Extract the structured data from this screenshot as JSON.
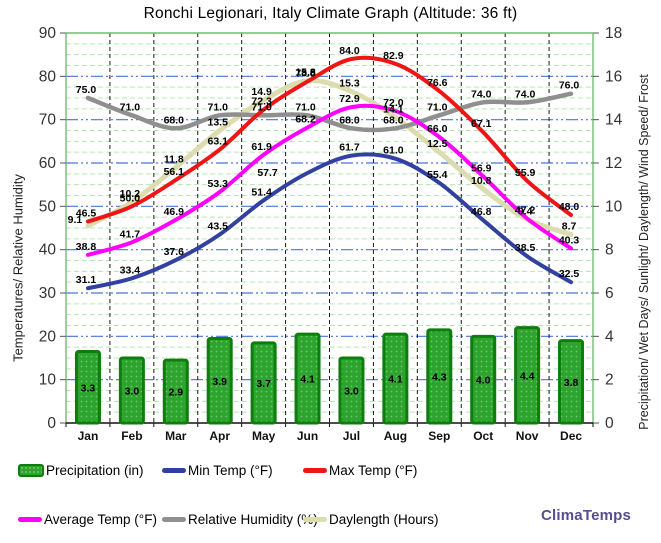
{
  "title": "Ronchi Legionari, Italy Climate Graph (Altitude: 36 ft)",
  "watermark": "ClimaTemps",
  "axes": {
    "left_title": "Temperatures/ Relative Humidity",
    "right_title": "Precipitation/ Wet Days/ Sunlight/ Daylength/ Wind Speed/ Frost",
    "left_ticks": [
      0,
      10,
      20,
      30,
      40,
      50,
      60,
      70,
      80,
      90
    ],
    "right_ticks": [
      0,
      2,
      4,
      6,
      8,
      10,
      12,
      14,
      16,
      18
    ],
    "left_range": [
      0,
      90
    ],
    "right_range": [
      0,
      18
    ]
  },
  "chart_data": {
    "type": "bar+line",
    "categories": [
      "Jan",
      "Feb",
      "Mar",
      "Apr",
      "May",
      "Jun",
      "Jul",
      "Aug",
      "Sep",
      "Oct",
      "Nov",
      "Dec"
    ],
    "grid": {
      "major_color": "#4a74d8",
      "minor_color": "#b5e8b5",
      "vertical_color": "#1a1a1a",
      "border_color": "#6fbf6f"
    },
    "series": [
      {
        "id": "precipitation",
        "name": "Precipitation (in)",
        "type": "bar",
        "axis": "right",
        "color": "#2da42d",
        "border_color": "#0d7d0d",
        "values": [
          3.3,
          3.0,
          2.9,
          3.9,
          3.7,
          4.1,
          3.0,
          4.1,
          4.3,
          4.0,
          4.4,
          3.8
        ]
      },
      {
        "id": "min-temp",
        "name": "Min Temp (°F)",
        "type": "line",
        "axis": "left",
        "color": "#3240a0",
        "values": [
          31.1,
          33.4,
          37.6,
          43.5,
          51.4,
          57.7,
          61.7,
          61.0,
          55.4,
          46.8,
          38.5,
          32.5
        ]
      },
      {
        "id": "max-temp",
        "name": "Max Temp (°F)",
        "type": "line",
        "axis": "left",
        "color": "#ed1515",
        "values": [
          46.5,
          50.0,
          56.1,
          63.1,
          72.3,
          78.8,
          84.0,
          82.9,
          76.6,
          67.1,
          55.9,
          48.0
        ]
      },
      {
        "id": "average-temp",
        "name": "Average Temp (°F)",
        "type": "line",
        "axis": "left",
        "color": "#ff00ff",
        "values": [
          38.8,
          41.7,
          46.9,
          53.3,
          61.9,
          68.2,
          72.9,
          72.0,
          66.0,
          56.9,
          47.2,
          40.3
        ]
      },
      {
        "id": "relative-humidity",
        "name": "Relative Humidity (%)",
        "type": "line",
        "axis": "left",
        "color": "#8f8f8f",
        "values": [
          75.0,
          71.0,
          68.0,
          71.0,
          71.0,
          71.0,
          68.0,
          68.0,
          71.0,
          74.0,
          74.0,
          76.0
        ]
      },
      {
        "id": "daylength",
        "name": "Daylength (Hours)",
        "type": "line",
        "axis": "right",
        "color": "#dcdcae",
        "values": [
          9.1,
          10.2,
          11.8,
          13.5,
          14.9,
          15.8,
          15.3,
          14.1,
          12.5,
          10.8,
          9.4,
          8.7
        ]
      }
    ],
    "xlabel": "",
    "ylabel_left": "Temperatures/ Relative Humidity",
    "ylabel_right": "Precipitation/ Wet Days/ Sunlight/ Daylength/ Wind Speed/ Frost",
    "ylim_left": [
      0,
      90
    ],
    "ylim_right": [
      0,
      18
    ],
    "legend_position": "bottom"
  },
  "legend": {
    "row1": [
      {
        "series": "precipitation",
        "label": "Precipitation (in)"
      },
      {
        "series": "min-temp",
        "label": "Min Temp (°F)"
      },
      {
        "series": "max-temp",
        "label": "Max Temp (°F)"
      }
    ],
    "row2": [
      {
        "series": "average-temp",
        "label": "Average Temp (°F)"
      },
      {
        "series": "relative-humidity",
        "label": "Relative Humidity (%)"
      },
      {
        "series": "daylength",
        "label": "Daylength (Hours)"
      }
    ]
  }
}
